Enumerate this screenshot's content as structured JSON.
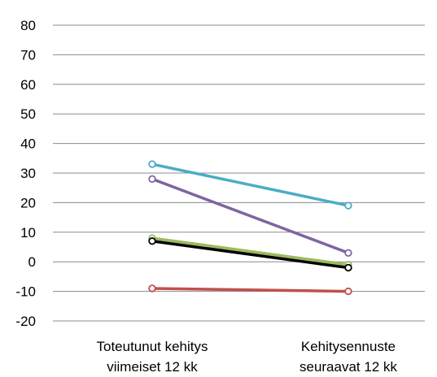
{
  "chart_data": {
    "type": "line",
    "title": "",
    "xlabel": "",
    "ylabel": "",
    "ylim": [
      -20,
      80
    ],
    "yticks": [
      80,
      70,
      60,
      50,
      40,
      30,
      20,
      10,
      0,
      -10,
      -20
    ],
    "ytick_labels": [
      "80",
      "70",
      "60",
      "50",
      "40",
      "30",
      "20",
      "10",
      "0",
      "-10",
      "-20"
    ],
    "grid": true,
    "legend": "none",
    "categories": [
      [
        "Toteutunut kehitys",
        "viimeiset 12 kk"
      ],
      [
        "Kehitysennuste",
        "seuraavat 12 kk"
      ]
    ],
    "series": [
      {
        "color": "#4BACC6",
        "values": [
          33,
          19
        ],
        "marker": "open-circle"
      },
      {
        "color": "#8064A2",
        "values": [
          28,
          3
        ],
        "marker": "open-circle"
      },
      {
        "color": "#9BBB59",
        "values": [
          8,
          -1
        ],
        "marker": "open-circle"
      },
      {
        "color": "#000000",
        "values": [
          7,
          -2
        ],
        "marker": "open-circle"
      },
      {
        "color": "#C0504D",
        "values": [
          -9,
          -10
        ],
        "marker": "open-circle"
      }
    ]
  }
}
